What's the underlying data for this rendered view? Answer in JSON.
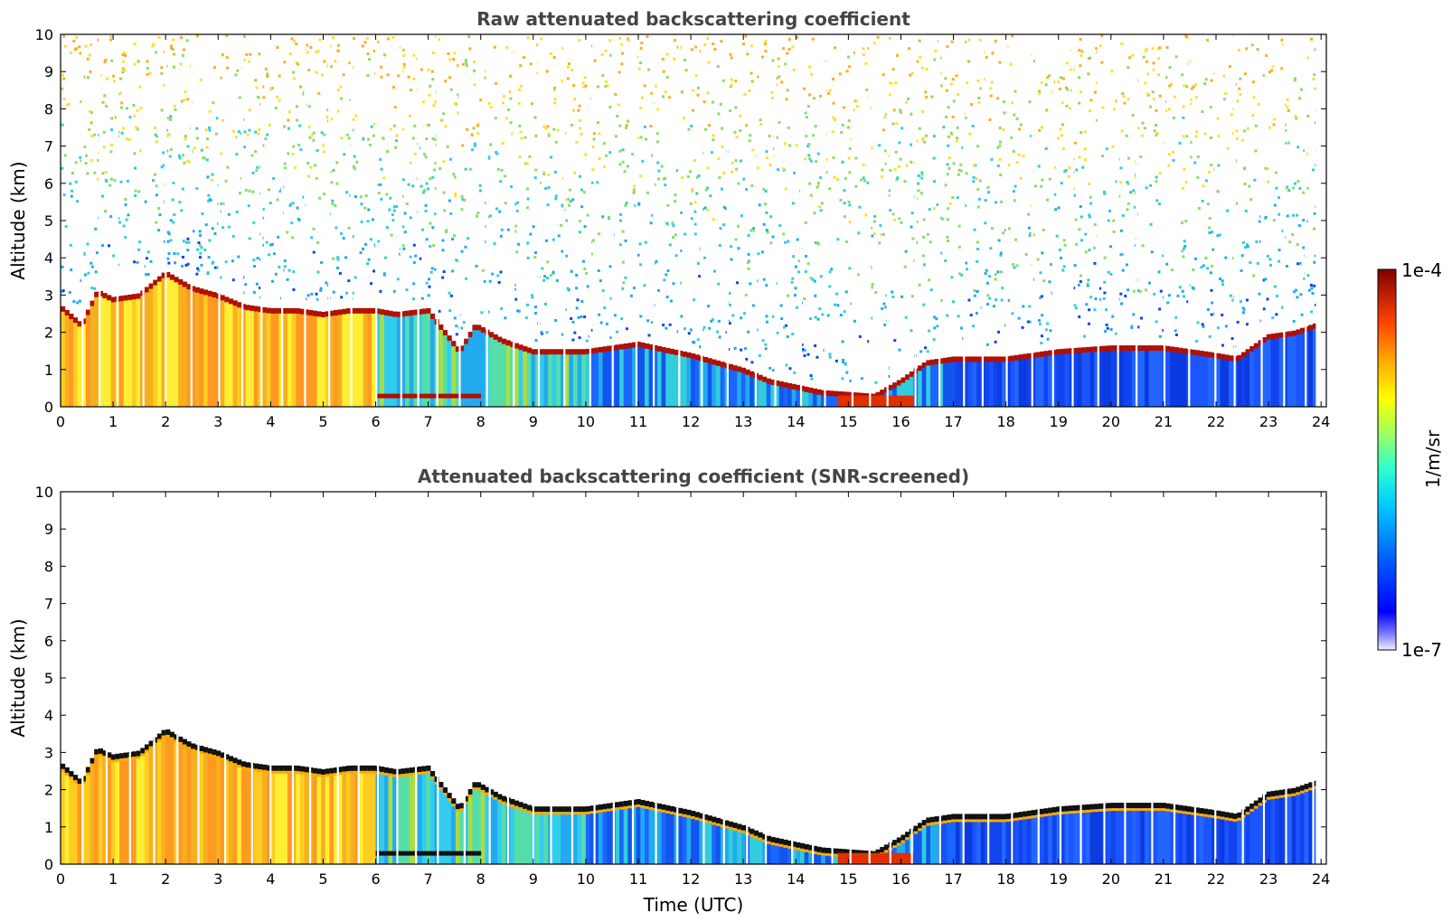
{
  "chart_data": [
    {
      "type": "heatmap",
      "title": "Raw attenuated backscattering coefficient",
      "xlabel": "",
      "ylabel": "Altitude (km)",
      "xlim": [
        0,
        24.1
      ],
      "ylim": [
        0,
        10
      ],
      "x_ticks": [
        "0",
        "1",
        "2",
        "3",
        "4",
        "5",
        "6",
        "7",
        "8",
        "9",
        "10",
        "11",
        "12",
        "13",
        "14",
        "15",
        "16",
        "17",
        "18",
        "19",
        "20",
        "21",
        "22",
        "23",
        "24"
      ],
      "y_ticks": [
        "0",
        "1",
        "2",
        "3",
        "4",
        "5",
        "6",
        "7",
        "8",
        "9",
        "10"
      ],
      "layer_top_km": [
        [
          0.0,
          2.7
        ],
        [
          0.4,
          2.2
        ],
        [
          0.7,
          3.1
        ],
        [
          1.0,
          2.9
        ],
        [
          1.5,
          3.0
        ],
        [
          2.0,
          3.6
        ],
        [
          2.5,
          3.2
        ],
        [
          3.0,
          3.0
        ],
        [
          3.5,
          2.7
        ],
        [
          4.0,
          2.6
        ],
        [
          4.5,
          2.6
        ],
        [
          5.0,
          2.5
        ],
        [
          5.5,
          2.6
        ],
        [
          6.0,
          2.6
        ],
        [
          6.4,
          2.5
        ],
        [
          7.0,
          2.6
        ],
        [
          7.6,
          1.5
        ],
        [
          7.9,
          2.2
        ],
        [
          8.4,
          1.8
        ],
        [
          9.0,
          1.5
        ],
        [
          10.0,
          1.5
        ],
        [
          11.0,
          1.7
        ],
        [
          12.0,
          1.4
        ],
        [
          13.0,
          1.0
        ],
        [
          13.5,
          0.7
        ],
        [
          14.5,
          0.4
        ],
        [
          15.5,
          0.3
        ],
        [
          16.0,
          0.7
        ],
        [
          16.5,
          1.2
        ],
        [
          17.0,
          1.3
        ],
        [
          18.0,
          1.3
        ],
        [
          19.0,
          1.5
        ],
        [
          20.0,
          1.6
        ],
        [
          21.0,
          1.6
        ],
        [
          22.0,
          1.4
        ],
        [
          22.4,
          1.3
        ],
        [
          23.0,
          1.9
        ],
        [
          23.5,
          2.0
        ],
        [
          23.9,
          2.2
        ]
      ],
      "colorbar": {
        "label": "1/m/sr",
        "min_label": "1e-7",
        "max_label": "1e-4",
        "scale": "log"
      },
      "grid": false
    },
    {
      "type": "heatmap",
      "title": "Attenuated backscattering coefficient (SNR-screened)",
      "xlabel": "Time (UTC)",
      "ylabel": "Altitude (km)",
      "xlim": [
        0,
        24.1
      ],
      "ylim": [
        0,
        10
      ],
      "x_ticks": [
        "0",
        "1",
        "2",
        "3",
        "4",
        "5",
        "6",
        "7",
        "8",
        "9",
        "10",
        "11",
        "12",
        "13",
        "14",
        "15",
        "16",
        "17",
        "18",
        "19",
        "20",
        "21",
        "22",
        "23",
        "24"
      ],
      "y_ticks": [
        "0",
        "1",
        "2",
        "3",
        "4",
        "5",
        "6",
        "7",
        "8",
        "9",
        "10"
      ],
      "layer_top_km": [
        [
          0.0,
          2.7
        ],
        [
          0.4,
          2.2
        ],
        [
          0.7,
          3.1
        ],
        [
          1.0,
          2.9
        ],
        [
          1.5,
          3.0
        ],
        [
          2.0,
          3.6
        ],
        [
          2.5,
          3.2
        ],
        [
          3.0,
          3.0
        ],
        [
          3.5,
          2.7
        ],
        [
          4.0,
          2.6
        ],
        [
          4.5,
          2.6
        ],
        [
          5.0,
          2.5
        ],
        [
          5.5,
          2.6
        ],
        [
          6.0,
          2.6
        ],
        [
          6.4,
          2.5
        ],
        [
          7.0,
          2.6
        ],
        [
          7.6,
          1.5
        ],
        [
          7.9,
          2.2
        ],
        [
          8.4,
          1.8
        ],
        [
          9.0,
          1.5
        ],
        [
          10.0,
          1.5
        ],
        [
          11.0,
          1.7
        ],
        [
          12.0,
          1.4
        ],
        [
          13.0,
          1.0
        ],
        [
          13.5,
          0.7
        ],
        [
          14.5,
          0.4
        ],
        [
          15.5,
          0.3
        ],
        [
          16.0,
          0.7
        ],
        [
          16.5,
          1.2
        ],
        [
          17.0,
          1.3
        ],
        [
          18.0,
          1.3
        ],
        [
          19.0,
          1.5
        ],
        [
          20.0,
          1.6
        ],
        [
          21.0,
          1.6
        ],
        [
          22.0,
          1.4
        ],
        [
          22.4,
          1.3
        ],
        [
          23.0,
          1.9
        ],
        [
          23.5,
          2.0
        ],
        [
          23.9,
          2.2
        ]
      ],
      "colorbar": {
        "label": "1/m/sr",
        "min_label": "1e-7",
        "max_label": "1e-4",
        "scale": "log"
      },
      "grid": false
    }
  ],
  "colors": {
    "low": "#0022ee",
    "mid": "#22ddee",
    "high_mid": "#ffee22",
    "high": "#ff6600",
    "top": "#8b0000",
    "title": "#444444"
  }
}
